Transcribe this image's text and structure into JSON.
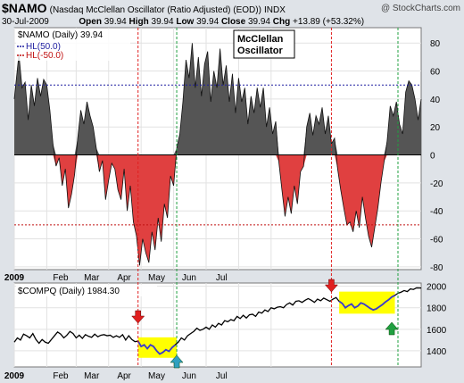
{
  "header": {
    "symbol": "$NAMO",
    "description": "(Nasdaq McClellan Oscillator (Ratio Adjusted) (EOD))",
    "exchange": "INDX",
    "watermark": "@ StockCharts.com",
    "date": "30-Jul-2009",
    "open_label": "Open",
    "open": "39.94",
    "high_label": "High",
    "high": "39.94",
    "low_label": "Low",
    "low": "39.94",
    "close_label": "Close",
    "close": "39.94",
    "chg_label": "Chg",
    "chg": "+13.89 (+53.32%)"
  },
  "colors": {
    "positive_fill": "#555555",
    "negative_fill": "#e04040",
    "compq_line": "#000000",
    "highlight_line": "#3a3ad0",
    "highlight_box": "#ffff00",
    "red_marker": "#e02020",
    "green_marker": "#20a040",
    "teal_marker": "#30a0c0"
  },
  "chart_data": [
    {
      "type": "area",
      "name": "NAMO panel",
      "legend": [
        "$NAMO (Daily) 39.94",
        "HL(50.0)",
        "HL(-50.0)"
      ],
      "legend_colors": [
        "#000000",
        "#1e1ea0",
        "#c01010"
      ],
      "annotation": [
        "McClellan",
        "Oscillator"
      ],
      "ylim": [
        -82,
        91
      ],
      "y_ticks": [
        -80,
        -60,
        -40,
        -20,
        0,
        20,
        40,
        60,
        80
      ],
      "hlines": [
        50,
        -50
      ],
      "x_labels": [
        "2009",
        "Feb",
        "Mar",
        "Apr",
        "May",
        "Jun",
        "Jul"
      ],
      "points": [
        [
          0,
          40
        ],
        [
          3,
          72
        ],
        [
          5,
          48
        ],
        [
          7,
          52
        ],
        [
          9,
          25
        ],
        [
          11,
          50
        ],
        [
          13,
          35
        ],
        [
          15,
          55
        ],
        [
          17,
          42
        ],
        [
          19,
          54
        ],
        [
          21,
          50
        ],
        [
          23,
          32
        ],
        [
          25,
          8
        ],
        [
          27,
          -8
        ],
        [
          29,
          -2
        ],
        [
          31,
          -22
        ],
        [
          33,
          -10
        ],
        [
          35,
          -38
        ],
        [
          37,
          -28
        ],
        [
          39,
          -14
        ],
        [
          41,
          12
        ],
        [
          43,
          32
        ],
        [
          45,
          22
        ],
        [
          47,
          38
        ],
        [
          49,
          28
        ],
        [
          51,
          20
        ],
        [
          53,
          5
        ],
        [
          55,
          -12
        ],
        [
          57,
          -4
        ],
        [
          59,
          -32
        ],
        [
          61,
          -18
        ],
        [
          63,
          -6
        ],
        [
          65,
          -10
        ],
        [
          67,
          -25
        ],
        [
          69,
          -32
        ],
        [
          71,
          -10
        ],
        [
          73,
          -40
        ],
        [
          75,
          -22
        ],
        [
          77,
          -48
        ],
        [
          79,
          -58
        ],
        [
          81,
          -79
        ],
        [
          83,
          -60
        ],
        [
          85,
          -70
        ],
        [
          87,
          -77
        ],
        [
          89,
          -55
        ],
        [
          91,
          -68
        ],
        [
          93,
          -45
        ],
        [
          95,
          -62
        ],
        [
          97,
          -35
        ],
        [
          99,
          -45
        ],
        [
          101,
          -15
        ],
        [
          103,
          -22
        ],
        [
          105,
          5
        ],
        [
          107,
          15
        ],
        [
          109,
          38
        ],
        [
          111,
          68
        ],
        [
          113,
          55
        ],
        [
          115,
          80
        ],
        [
          117,
          48
        ],
        [
          119,
          70
        ],
        [
          121,
          42
        ],
        [
          123,
          65
        ],
        [
          125,
          74
        ],
        [
          127,
          38
        ],
        [
          129,
          60
        ],
        [
          131,
          48
        ],
        [
          133,
          76
        ],
        [
          135,
          50
        ],
        [
          137,
          64
        ],
        [
          139,
          38
        ],
        [
          141,
          58
        ],
        [
          143,
          30
        ],
        [
          145,
          55
        ],
        [
          147,
          38
        ],
        [
          149,
          48
        ],
        [
          151,
          22
        ],
        [
          153,
          42
        ],
        [
          155,
          30
        ],
        [
          157,
          48
        ],
        [
          159,
          34
        ],
        [
          161,
          48
        ],
        [
          163,
          20
        ],
        [
          165,
          34
        ],
        [
          167,
          15
        ],
        [
          169,
          24
        ],
        [
          171,
          -5
        ],
        [
          173,
          -25
        ],
        [
          175,
          -44
        ],
        [
          177,
          -30
        ],
        [
          179,
          -42
        ],
        [
          181,
          -22
        ],
        [
          183,
          -35
        ],
        [
          185,
          -12
        ],
        [
          187,
          -8
        ],
        [
          189,
          20
        ],
        [
          191,
          30
        ],
        [
          193,
          14
        ],
        [
          195,
          28
        ],
        [
          197,
          22
        ],
        [
          199,
          34
        ],
        [
          201,
          15
        ],
        [
          203,
          28
        ],
        [
          205,
          8
        ],
        [
          207,
          12
        ],
        [
          209,
          -10
        ],
        [
          211,
          -25
        ],
        [
          213,
          -38
        ],
        [
          215,
          -50
        ],
        [
          217,
          -48
        ],
        [
          219,
          -55
        ],
        [
          221,
          -40
        ],
        [
          223,
          -52
        ],
        [
          225,
          -30
        ],
        [
          227,
          -45
        ],
        [
          229,
          -58
        ],
        [
          231,
          -66
        ],
        [
          233,
          -52
        ],
        [
          235,
          -38
        ],
        [
          237,
          -20
        ],
        [
          239,
          -5
        ],
        [
          241,
          10
        ],
        [
          243,
          35
        ],
        [
          245,
          28
        ],
        [
          247,
          38
        ],
        [
          249,
          22
        ],
        [
          251,
          15
        ],
        [
          253,
          45
        ],
        [
          255,
          53
        ],
        [
          257,
          50
        ],
        [
          259,
          40
        ],
        [
          261,
          25
        ],
        [
          263,
          40
        ]
      ]
    },
    {
      "type": "line",
      "name": "COMPQ panel",
      "legend": [
        "$COMPQ (Daily) 1984.30"
      ],
      "ylim": [
        1250,
        2030
      ],
      "y_ticks": [
        1400,
        1600,
        1800,
        2000
      ],
      "x_labels": [
        "2009",
        "Feb",
        "Mar",
        "Apr",
        "May",
        "Jun",
        "Jul"
      ],
      "highlight_ranges": [
        [
          80,
          105
        ],
        [
          210,
          246
        ]
      ],
      "points": [
        [
          0,
          1480
        ],
        [
          2,
          1520
        ],
        [
          4,
          1500
        ],
        [
          6,
          1555
        ],
        [
          8,
          1540
        ],
        [
          10,
          1520
        ],
        [
          12,
          1560
        ],
        [
          14,
          1505
        ],
        [
          16,
          1470
        ],
        [
          18,
          1505
        ],
        [
          20,
          1480
        ],
        [
          22,
          1470
        ],
        [
          24,
          1505
        ],
        [
          26,
          1540
        ],
        [
          28,
          1575
        ],
        [
          30,
          1555
        ],
        [
          32,
          1520
        ],
        [
          34,
          1545
        ],
        [
          36,
          1580
        ],
        [
          38,
          1560
        ],
        [
          40,
          1520
        ],
        [
          42,
          1545
        ],
        [
          44,
          1515
        ],
        [
          46,
          1550
        ],
        [
          48,
          1535
        ],
        [
          50,
          1525
        ],
        [
          52,
          1555
        ],
        [
          54,
          1530
        ],
        [
          56,
          1545
        ],
        [
          58,
          1550
        ],
        [
          60,
          1540
        ],
        [
          62,
          1545
        ],
        [
          64,
          1525
        ],
        [
          66,
          1540
        ],
        [
          68,
          1525
        ],
        [
          70,
          1550
        ],
        [
          72,
          1500
        ],
        [
          74,
          1540
        ],
        [
          76,
          1505
        ],
        [
          78,
          1485
        ],
        [
          80,
          1490
        ],
        [
          82,
          1440
        ],
        [
          84,
          1455
        ],
        [
          86,
          1420
        ],
        [
          88,
          1455
        ],
        [
          90,
          1440
        ],
        [
          92,
          1400
        ],
        [
          94,
          1370
        ],
        [
          96,
          1385
        ],
        [
          98,
          1410
        ],
        [
          100,
          1395
        ],
        [
          102,
          1430
        ],
        [
          104,
          1455
        ],
        [
          106,
          1480
        ],
        [
          108,
          1520
        ],
        [
          110,
          1500
        ],
        [
          112,
          1540
        ],
        [
          114,
          1560
        ],
        [
          116,
          1580
        ],
        [
          118,
          1610
        ],
        [
          120,
          1590
        ],
        [
          122,
          1600
        ],
        [
          124,
          1620
        ],
        [
          126,
          1600
        ],
        [
          128,
          1640
        ],
        [
          130,
          1620
        ],
        [
          132,
          1655
        ],
        [
          134,
          1640
        ],
        [
          136,
          1680
        ],
        [
          138,
          1670
        ],
        [
          140,
          1690
        ],
        [
          142,
          1680
        ],
        [
          144,
          1720
        ],
        [
          146,
          1700
        ],
        [
          148,
          1730
        ],
        [
          150,
          1705
        ],
        [
          152,
          1735
        ],
        [
          154,
          1740
        ],
        [
          156,
          1720
        ],
        [
          158,
          1760
        ],
        [
          160,
          1750
        ],
        [
          162,
          1780
        ],
        [
          164,
          1765
        ],
        [
          166,
          1800
        ],
        [
          168,
          1790
        ],
        [
          170,
          1805
        ],
        [
          172,
          1810
        ],
        [
          174,
          1800
        ],
        [
          176,
          1830
        ],
        [
          178,
          1845
        ],
        [
          180,
          1825
        ],
        [
          182,
          1860
        ],
        [
          184,
          1865
        ],
        [
          186,
          1850
        ],
        [
          188,
          1870
        ],
        [
          190,
          1885
        ],
        [
          192,
          1870
        ],
        [
          194,
          1850
        ],
        [
          196,
          1880
        ],
        [
          198,
          1865
        ],
        [
          200,
          1890
        ],
        [
          202,
          1875
        ],
        [
          204,
          1860
        ],
        [
          206,
          1880
        ],
        [
          208,
          1895
        ],
        [
          210,
          1860
        ],
        [
          212,
          1840
        ],
        [
          214,
          1800
        ],
        [
          216,
          1820
        ],
        [
          218,
          1835
        ],
        [
          220,
          1800
        ],
        [
          222,
          1815
        ],
        [
          224,
          1845
        ],
        [
          226,
          1835
        ],
        [
          228,
          1815
        ],
        [
          230,
          1795
        ],
        [
          232,
          1780
        ],
        [
          234,
          1790
        ],
        [
          236,
          1810
        ],
        [
          238,
          1830
        ],
        [
          240,
          1855
        ],
        [
          242,
          1875
        ],
        [
          244,
          1900
        ],
        [
          246,
          1915
        ],
        [
          248,
          1935
        ],
        [
          250,
          1945
        ],
        [
          252,
          1960
        ],
        [
          254,
          1950
        ],
        [
          256,
          1975
        ],
        [
          258,
          1970
        ],
        [
          260,
          1985
        ],
        [
          263,
          1984
        ]
      ]
    }
  ],
  "events": {
    "red_vlines": [
      80,
      205
    ],
    "green_vlines": [
      105,
      248
    ]
  }
}
